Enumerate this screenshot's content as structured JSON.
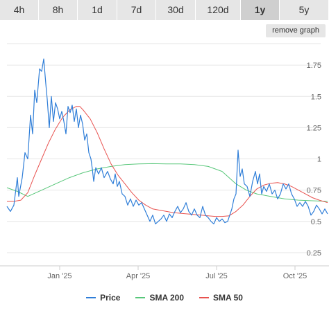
{
  "ranges": {
    "items": [
      "4h",
      "8h",
      "1d",
      "7d",
      "30d",
      "120d",
      "1y",
      "5y"
    ],
    "active": "1y"
  },
  "remove_graph_label": "remove graph",
  "chart_data": {
    "type": "line",
    "x_ticks": [
      "Jan '25",
      "Apr '25",
      "Jul '25",
      "Oct '25"
    ],
    "y_ticks": [
      0.25,
      0.5,
      0.75,
      1,
      1.25,
      1.5,
      1.75
    ],
    "ylim": [
      0.15,
      1.95
    ],
    "grid": "horizontal",
    "legend_position": "bottom",
    "series": [
      {
        "name": "Price",
        "color": "#2f7ed8",
        "points": [
          [
            0,
            0.62
          ],
          [
            5,
            0.58
          ],
          [
            10,
            0.63
          ],
          [
            15,
            0.85
          ],
          [
            17,
            0.7
          ],
          [
            22,
            0.85
          ],
          [
            26,
            1.05
          ],
          [
            30,
            1.0
          ],
          [
            34,
            1.35
          ],
          [
            37,
            1.2
          ],
          [
            40,
            1.55
          ],
          [
            43,
            1.45
          ],
          [
            47,
            1.72
          ],
          [
            50,
            1.7
          ],
          [
            53,
            1.8
          ],
          [
            56,
            1.6
          ],
          [
            58,
            1.48
          ],
          [
            61,
            1.25
          ],
          [
            64,
            1.5
          ],
          [
            67,
            1.3
          ],
          [
            70,
            1.45
          ],
          [
            73,
            1.4
          ],
          [
            76,
            1.32
          ],
          [
            79,
            1.38
          ],
          [
            82,
            1.3
          ],
          [
            85,
            1.2
          ],
          [
            88,
            1.42
          ],
          [
            91,
            1.37
          ],
          [
            94,
            1.43
          ],
          [
            97,
            1.3
          ],
          [
            100,
            1.4
          ],
          [
            103,
            1.25
          ],
          [
            106,
            1.35
          ],
          [
            109,
            1.28
          ],
          [
            112,
            1.15
          ],
          [
            115,
            1.2
          ],
          [
            118,
            1.05
          ],
          [
            121,
            1.0
          ],
          [
            123,
            0.92
          ],
          [
            125,
            0.82
          ],
          [
            128,
            0.93
          ],
          [
            132,
            0.88
          ],
          [
            136,
            0.93
          ],
          [
            140,
            0.85
          ],
          [
            145,
            0.9
          ],
          [
            149,
            0.84
          ],
          [
            153,
            0.8
          ],
          [
            156,
            0.88
          ],
          [
            159,
            0.78
          ],
          [
            162,
            0.82
          ],
          [
            166,
            0.72
          ],
          [
            170,
            0.7
          ],
          [
            174,
            0.63
          ],
          [
            178,
            0.68
          ],
          [
            182,
            0.62
          ],
          [
            186,
            0.67
          ],
          [
            190,
            0.63
          ],
          [
            194,
            0.65
          ],
          [
            198,
            0.6
          ],
          [
            202,
            0.55
          ],
          [
            206,
            0.5
          ],
          [
            210,
            0.55
          ],
          [
            214,
            0.48
          ],
          [
            218,
            0.5
          ],
          [
            222,
            0.52
          ],
          [
            226,
            0.55
          ],
          [
            230,
            0.5
          ],
          [
            234,
            0.56
          ],
          [
            238,
            0.53
          ],
          [
            242,
            0.58
          ],
          [
            246,
            0.62
          ],
          [
            250,
            0.57
          ],
          [
            254,
            0.6
          ],
          [
            258,
            0.65
          ],
          [
            262,
            0.58
          ],
          [
            266,
            0.55
          ],
          [
            270,
            0.6
          ],
          [
            274,
            0.55
          ],
          [
            278,
            0.53
          ],
          [
            282,
            0.62
          ],
          [
            286,
            0.55
          ],
          [
            290,
            0.53
          ],
          [
            294,
            0.5
          ],
          [
            298,
            0.48
          ],
          [
            302,
            0.53
          ],
          [
            306,
            0.5
          ],
          [
            310,
            0.52
          ],
          [
            314,
            0.49
          ],
          [
            318,
            0.5
          ],
          [
            321,
            0.55
          ],
          [
            324,
            0.6
          ],
          [
            327,
            0.68
          ],
          [
            330,
            0.72
          ],
          [
            333,
            1.07
          ],
          [
            336,
            0.86
          ],
          [
            339,
            0.92
          ],
          [
            342,
            0.8
          ],
          [
            346,
            0.78
          ],
          [
            350,
            0.7
          ],
          [
            354,
            0.82
          ],
          [
            358,
            0.9
          ],
          [
            361,
            0.8
          ],
          [
            364,
            0.88
          ],
          [
            367,
            0.72
          ],
          [
            370,
            0.78
          ],
          [
            374,
            0.74
          ],
          [
            378,
            0.8
          ],
          [
            382,
            0.72
          ],
          [
            386,
            0.75
          ],
          [
            390,
            0.68
          ],
          [
            394,
            0.72
          ],
          [
            398,
            0.8
          ],
          [
            402,
            0.76
          ],
          [
            406,
            0.8
          ],
          [
            410,
            0.72
          ],
          [
            414,
            0.68
          ],
          [
            418,
            0.62
          ],
          [
            422,
            0.65
          ],
          [
            426,
            0.62
          ],
          [
            430,
            0.66
          ],
          [
            434,
            0.62
          ],
          [
            438,
            0.55
          ],
          [
            442,
            0.58
          ],
          [
            446,
            0.63
          ],
          [
            450,
            0.6
          ],
          [
            454,
            0.56
          ],
          [
            458,
            0.6
          ],
          [
            462,
            0.56
          ]
        ]
      },
      {
        "name": "SMA 200",
        "color": "#58c77a",
        "points": [
          [
            0,
            0.77
          ],
          [
            15,
            0.74
          ],
          [
            30,
            0.7
          ],
          [
            50,
            0.75
          ],
          [
            70,
            0.8
          ],
          [
            90,
            0.85
          ],
          [
            110,
            0.89
          ],
          [
            130,
            0.92
          ],
          [
            150,
            0.94
          ],
          [
            170,
            0.955
          ],
          [
            190,
            0.96
          ],
          [
            210,
            0.962
          ],
          [
            230,
            0.96
          ],
          [
            250,
            0.96
          ],
          [
            270,
            0.955
          ],
          [
            290,
            0.94
          ],
          [
            310,
            0.9
          ],
          [
            330,
            0.8
          ],
          [
            345,
            0.75
          ],
          [
            360,
            0.72
          ],
          [
            380,
            0.7
          ],
          [
            400,
            0.68
          ],
          [
            420,
            0.67
          ],
          [
            440,
            0.665
          ],
          [
            462,
            0.66
          ]
        ]
      },
      {
        "name": "SMA 50",
        "color": "#e8524f",
        "points": [
          [
            0,
            0.66
          ],
          [
            10,
            0.66
          ],
          [
            20,
            0.67
          ],
          [
            30,
            0.73
          ],
          [
            40,
            0.87
          ],
          [
            50,
            1.0
          ],
          [
            60,
            1.13
          ],
          [
            70,
            1.24
          ],
          [
            80,
            1.33
          ],
          [
            90,
            1.39
          ],
          [
            100,
            1.42
          ],
          [
            105,
            1.42
          ],
          [
            110,
            1.39
          ],
          [
            120,
            1.32
          ],
          [
            130,
            1.21
          ],
          [
            140,
            1.08
          ],
          [
            150,
            0.96
          ],
          [
            160,
            0.87
          ],
          [
            170,
            0.8
          ],
          [
            180,
            0.73
          ],
          [
            190,
            0.67
          ],
          [
            200,
            0.63
          ],
          [
            210,
            0.6
          ],
          [
            220,
            0.59
          ],
          [
            230,
            0.58
          ],
          [
            240,
            0.57
          ],
          [
            250,
            0.565
          ],
          [
            260,
            0.56
          ],
          [
            270,
            0.555
          ],
          [
            280,
            0.55
          ],
          [
            290,
            0.545
          ],
          [
            300,
            0.54
          ],
          [
            310,
            0.54
          ],
          [
            320,
            0.545
          ],
          [
            330,
            0.58
          ],
          [
            340,
            0.63
          ],
          [
            350,
            0.7
          ],
          [
            360,
            0.76
          ],
          [
            370,
            0.79
          ],
          [
            380,
            0.805
          ],
          [
            390,
            0.81
          ],
          [
            400,
            0.8
          ],
          [
            410,
            0.78
          ],
          [
            420,
            0.75
          ],
          [
            430,
            0.72
          ],
          [
            440,
            0.69
          ],
          [
            450,
            0.67
          ],
          [
            462,
            0.65
          ]
        ]
      }
    ]
  }
}
